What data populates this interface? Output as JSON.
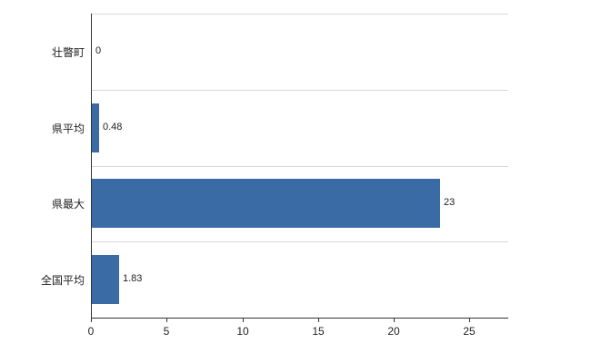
{
  "chart_data": {
    "type": "bar",
    "orientation": "horizontal",
    "title": "",
    "categories": [
      "壮瞥町",
      "県平均",
      "県最大",
      "全国平均"
    ],
    "values": [
      0,
      0.48,
      23,
      1.83
    ],
    "value_labels": [
      "0",
      "0.48",
      "23",
      "1.83"
    ],
    "x_ticks": [
      0,
      5,
      10,
      15,
      20,
      25
    ],
    "x_tick_labels": [
      "0",
      "5",
      "10",
      "15",
      "20",
      "25"
    ],
    "xlim": [
      0,
      27.5
    ],
    "grid": "horizontal-category-boundaries",
    "legend": "none",
    "colors": {
      "bar": "#3b6ba5",
      "grid": "#d9d9d9",
      "axis": "#333333",
      "text": "#222222",
      "background": "#ffffff"
    }
  }
}
